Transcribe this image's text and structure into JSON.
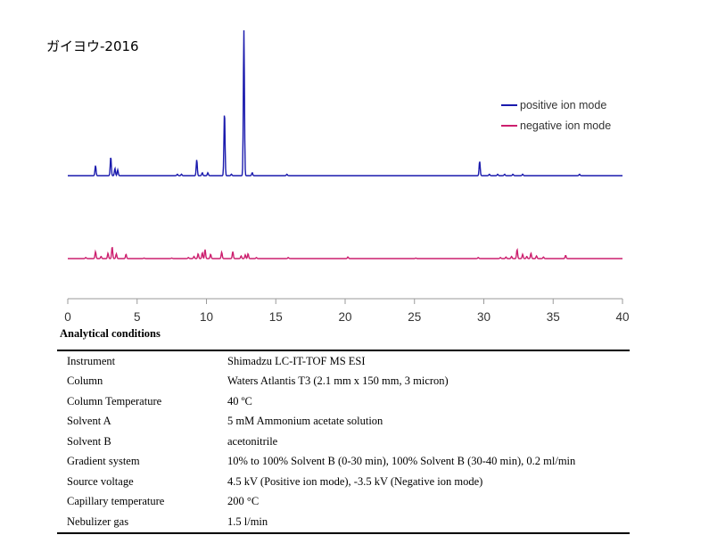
{
  "sample_title": "ガイヨウ-2016",
  "legend": [
    {
      "label": "positive ion mode",
      "color": "#1a1aad"
    },
    {
      "label": "negative ion mode",
      "color": "#cc1f6e"
    }
  ],
  "chart_data": {
    "type": "line",
    "title": "ガイヨウ-2016",
    "xlabel": "",
    "ylabel": "",
    "xlim": [
      0,
      40
    ],
    "x_ticks": [
      0,
      5,
      10,
      15,
      20,
      25,
      30,
      35,
      40
    ],
    "series": [
      {
        "name": "positive ion mode",
        "color": "#1a1aad",
        "peaks": [
          [
            2.0,
            0.07
          ],
          [
            3.1,
            0.13
          ],
          [
            3.4,
            0.05
          ],
          [
            3.6,
            0.04
          ],
          [
            7.9,
            0.01
          ],
          [
            8.2,
            0.01
          ],
          [
            9.3,
            0.11
          ],
          [
            9.7,
            0.02
          ],
          [
            10.1,
            0.02
          ],
          [
            11.3,
            0.44
          ],
          [
            11.8,
            0.01
          ],
          [
            12.7,
            1.0
          ],
          [
            13.3,
            0.02
          ],
          [
            15.8,
            0.01
          ],
          [
            29.7,
            0.1
          ],
          [
            30.4,
            0.01
          ],
          [
            31.0,
            0.01
          ],
          [
            31.5,
            0.01
          ],
          [
            32.1,
            0.01
          ],
          [
            32.8,
            0.01
          ],
          [
            36.9,
            0.01
          ]
        ]
      },
      {
        "name": "negative ion mode",
        "color": "#cc1f6e",
        "peaks": [
          [
            1.3,
            0.02
          ],
          [
            2.0,
            0.13
          ],
          [
            2.4,
            0.04
          ],
          [
            2.9,
            0.1
          ],
          [
            3.2,
            0.22
          ],
          [
            3.5,
            0.09
          ],
          [
            4.2,
            0.08
          ],
          [
            5.5,
            0.01
          ],
          [
            7.5,
            0.01
          ],
          [
            8.7,
            0.02
          ],
          [
            9.1,
            0.04
          ],
          [
            9.4,
            0.09
          ],
          [
            9.7,
            0.11
          ],
          [
            9.9,
            0.17
          ],
          [
            10.3,
            0.08
          ],
          [
            11.1,
            0.12
          ],
          [
            11.9,
            0.13
          ],
          [
            12.5,
            0.05
          ],
          [
            12.8,
            0.07
          ],
          [
            13.0,
            0.09
          ],
          [
            13.6,
            0.02
          ],
          [
            15.9,
            0.02
          ],
          [
            20.2,
            0.03
          ],
          [
            25.1,
            0.01
          ],
          [
            29.6,
            0.02
          ],
          [
            31.2,
            0.02
          ],
          [
            31.6,
            0.03
          ],
          [
            32.0,
            0.04
          ],
          [
            32.4,
            0.17
          ],
          [
            32.8,
            0.08
          ],
          [
            33.1,
            0.04
          ],
          [
            33.4,
            0.1
          ],
          [
            33.8,
            0.05
          ],
          [
            34.3,
            0.03
          ],
          [
            35.9,
            0.06
          ]
        ]
      }
    ]
  },
  "conditions": {
    "title": "Analytical conditions",
    "rows": [
      {
        "key": "Instrument",
        "value": "Shimadzu LC-IT-TOF MS ESI"
      },
      {
        "key": "Column",
        "value": "Waters Atlantis T3 (2.1 mm x 150 mm, 3 micron)"
      },
      {
        "key": "Column Temperature",
        "value": "40 ºC"
      },
      {
        "key": "Solvent A",
        "value": "5 mM Ammonium acetate solution"
      },
      {
        "key": "Solvent B",
        "value": "acetonitrile"
      },
      {
        "key": "Gradient system",
        "value": "10% to 100% Solvent B (0-30 min), 100% Solvent B (30-40 min), 0.2 ml/min"
      },
      {
        "key": "Source voltage",
        "value": "4.5 kV (Positive ion mode), -3.5 kV (Negative ion mode)"
      },
      {
        "key": "Capillary temperature",
        "value": "200 °C"
      },
      {
        "key": "Nebulizer gas",
        "value": "1.5 l/min"
      }
    ]
  }
}
